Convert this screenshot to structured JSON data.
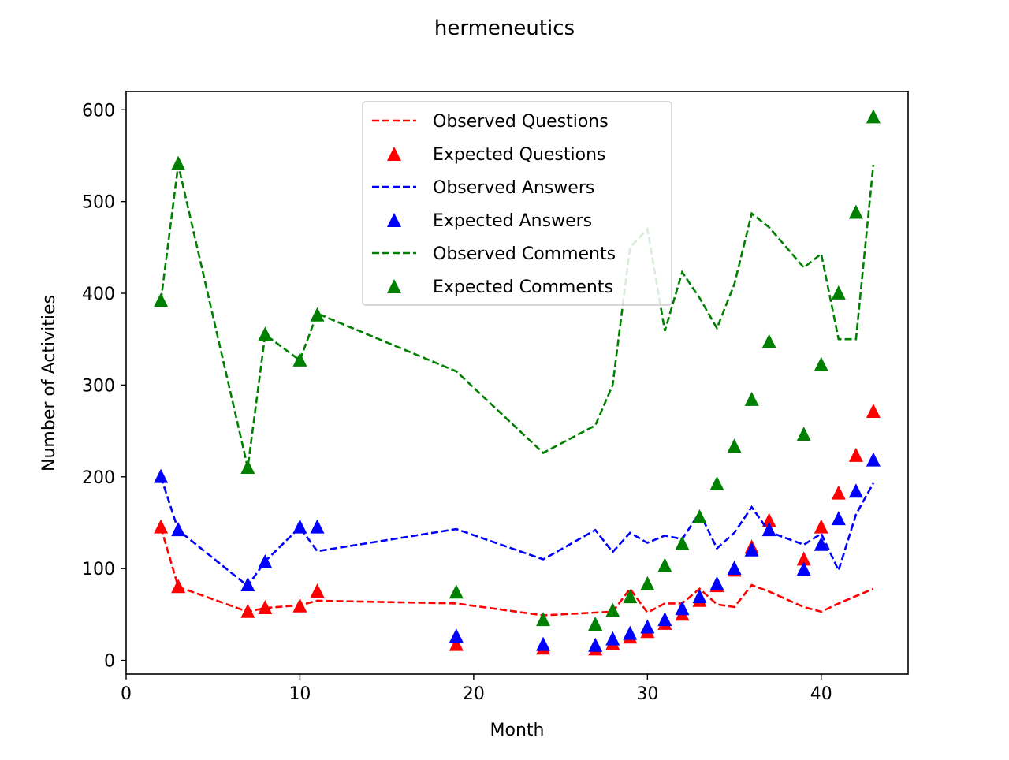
{
  "chart_data": {
    "type": "line",
    "title": "hermeneutics",
    "xlabel": "Month",
    "ylabel": "Number of Activities",
    "xlim": [
      0,
      45
    ],
    "ylim": [
      -15,
      620
    ],
    "xticks": [
      0,
      10,
      20,
      30,
      40
    ],
    "yticks": [
      0,
      100,
      200,
      300,
      400,
      500,
      600
    ],
    "grid": false,
    "legend_position": "top-center",
    "x": [
      2,
      3,
      7,
      8,
      10,
      11,
      19,
      24,
      27,
      28,
      29,
      30,
      31,
      32,
      33,
      34,
      35,
      36,
      37,
      39,
      40,
      41,
      42,
      43
    ],
    "series": [
      {
        "name": "Observed Questions",
        "kind": "line",
        "color": "#ff0000",
        "values": [
          145,
          80,
          53,
          57,
          60,
          65,
          62,
          49,
          52,
          53,
          78,
          52,
          62,
          62,
          78,
          61,
          58,
          82,
          75,
          58,
          53,
          62,
          70,
          78
        ]
      },
      {
        "name": "Expected Questions",
        "kind": "marker",
        "color": "#ff0000",
        "values": [
          146,
          81,
          54,
          58,
          60,
          76,
          18,
          14,
          13,
          19,
          26,
          32,
          41,
          51,
          66,
          82,
          99,
          124,
          153,
          111,
          146,
          183,
          224,
          272
        ]
      },
      {
        "name": "Observed Answers",
        "kind": "line",
        "color": "#0000ff",
        "values": [
          200,
          142,
          81,
          108,
          145,
          119,
          143,
          110,
          142,
          118,
          139,
          128,
          136,
          132,
          161,
          122,
          139,
          167,
          140,
          126,
          138,
          98,
          159,
          193
        ]
      },
      {
        "name": "Expected Answers",
        "kind": "marker",
        "color": "#0000ff",
        "values": [
          201,
          143,
          83,
          108,
          146,
          146,
          27,
          18,
          17,
          24,
          30,
          37,
          45,
          57,
          70,
          84,
          101,
          121,
          143,
          100,
          127,
          155,
          185,
          219
        ]
      },
      {
        "name": "Observed Comments",
        "kind": "line",
        "color": "#008000",
        "values": [
          392,
          540,
          210,
          355,
          327,
          378,
          315,
          226,
          256,
          300,
          450,
          470,
          359,
          423,
          395,
          362,
          410,
          487,
          472,
          428,
          443,
          350,
          350,
          540
        ]
      },
      {
        "name": "Expected Comments",
        "kind": "marker",
        "color": "#008000",
        "values": [
          393,
          542,
          211,
          356,
          328,
          377,
          75,
          45,
          40,
          55,
          70,
          84,
          104,
          128,
          157,
          193,
          234,
          285,
          348,
          247,
          323,
          401,
          489,
          593
        ]
      }
    ]
  }
}
